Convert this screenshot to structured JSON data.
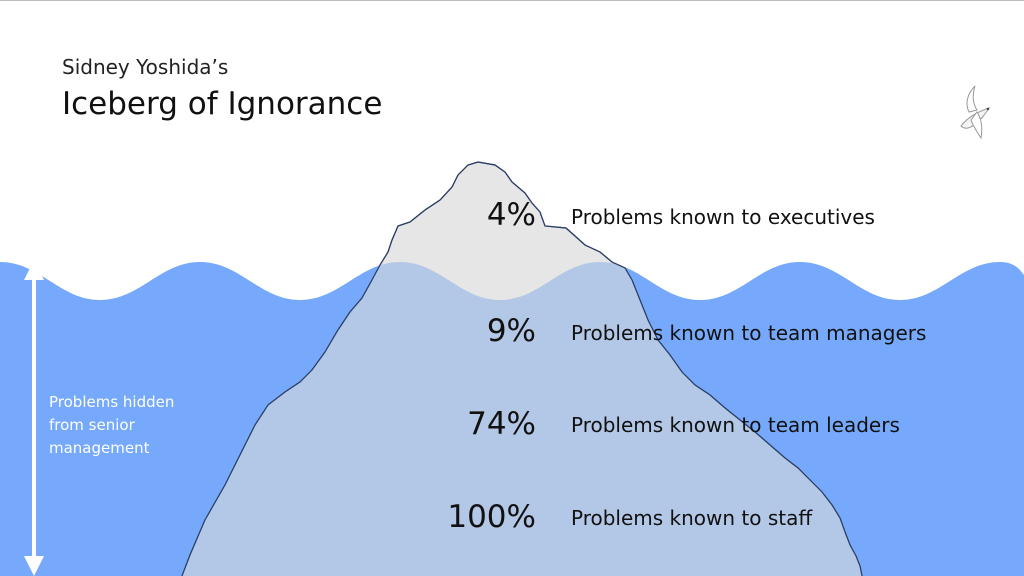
{
  "header": {
    "subtitle": "Sidney Yoshida’s",
    "title": "Iceberg of Ignorance"
  },
  "levels": [
    {
      "percent": "4%",
      "label": "Problems known to executives"
    },
    {
      "percent": "9%",
      "label": "Problems known to team managers"
    },
    {
      "percent": "74%",
      "label": "Problems known to team leaders"
    },
    {
      "percent": "100%",
      "label": "Problems known to staff"
    }
  ],
  "hidden_label": "Problems hidden from senior management",
  "icons": {
    "decoration": "seagull-icon"
  },
  "colors": {
    "water": "#76a9fb",
    "iceberg_above": "#e6e6e6",
    "iceberg_below": "#b3c7e6",
    "iceberg_outline": "#2c3e66",
    "arrow": "#ffffff"
  }
}
